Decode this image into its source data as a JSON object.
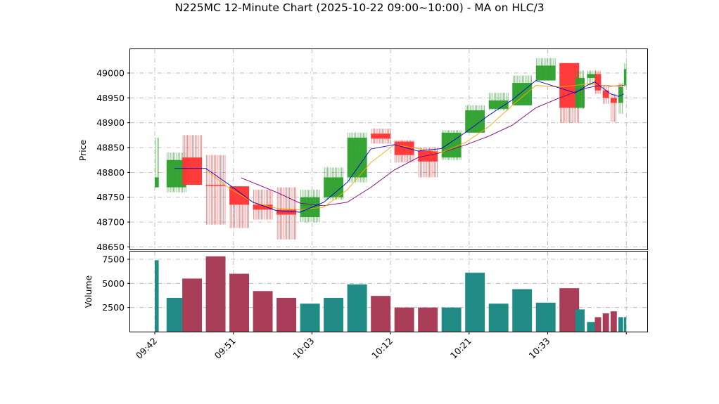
{
  "chart_data": {
    "type": "candlestick",
    "title": "N225MC 12-Minute Chart (2025-10-22 09:00~10:00) - MA on HLC/3",
    "price_panel": {
      "ylabel": "Price",
      "ylim": [
        48645,
        49048
      ],
      "yticks": [
        48650,
        48700,
        48750,
        48800,
        48850,
        48900,
        48950,
        49000
      ],
      "grid": true
    },
    "volume_panel": {
      "ylabel": "Volume",
      "ylim": [
        0,
        8300
      ],
      "yticks": [
        2500,
        5000,
        7500
      ],
      "grid": true
    },
    "x_tick_labels": [
      "09:42",
      "09:51",
      "10:03",
      "10:12",
      "10:21",
      "10:33"
    ],
    "colors": {
      "up": "#2ca02c",
      "down": "#ff3333",
      "volume_up": "#1f8f7a",
      "volume_down": "#a5405a",
      "ma_short": "#0000cc",
      "ma_mid": "#ffa500",
      "ma_long": "#800080"
    },
    "candles": [
      {
        "open": 48770,
        "high": 48870,
        "low": 48770,
        "close": 48790,
        "volume": 7400
      },
      {
        "open": 48770,
        "high": 48840,
        "low": 48760,
        "close": 48825,
        "volume": 3500
      },
      {
        "open": 48830,
        "high": 48875,
        "low": 48775,
        "close": 48775,
        "volume": 5500
      },
      {
        "open": 48775,
        "high": 48835,
        "low": 48695,
        "close": 48773,
        "volume": 7800
      },
      {
        "open": 48772,
        "high": 48772,
        "low": 48688,
        "close": 48735,
        "volume": 6000
      },
      {
        "open": 48735,
        "high": 48765,
        "low": 48705,
        "close": 48725,
        "volume": 4200
      },
      {
        "open": 48725,
        "high": 48770,
        "low": 48665,
        "close": 48715,
        "volume": 3500
      },
      {
        "open": 48710,
        "high": 48765,
        "low": 48700,
        "close": 48750,
        "volume": 2900
      },
      {
        "open": 48750,
        "high": 48810,
        "low": 48745,
        "close": 48790,
        "volume": 3500
      },
      {
        "open": 48790,
        "high": 48880,
        "low": 48780,
        "close": 48870,
        "volume": 4900
      },
      {
        "open": 48878,
        "high": 48888,
        "low": 48858,
        "close": 48868,
        "volume": 3700
      },
      {
        "open": 48862,
        "high": 48865,
        "low": 48820,
        "close": 48835,
        "volume": 2500
      },
      {
        "open": 48843,
        "high": 48850,
        "low": 48790,
        "close": 48822,
        "volume": 2500
      },
      {
        "open": 48830,
        "high": 48885,
        "low": 48825,
        "close": 48880,
        "volume": 2500
      },
      {
        "open": 48880,
        "high": 48935,
        "low": 48880,
        "close": 48925,
        "volume": 6100
      },
      {
        "open": 48928,
        "high": 48960,
        "low": 48925,
        "close": 48945,
        "volume": 2900
      },
      {
        "open": 48935,
        "high": 48995,
        "low": 48935,
        "close": 48980,
        "volume": 4400
      },
      {
        "open": 48985,
        "high": 49030,
        "low": 48985,
        "close": 49015,
        "volume": 3000
      },
      {
        "open": 49020,
        "high": 49020,
        "low": 48900,
        "close": 48930,
        "volume": 4500
      },
      {
        "open": 48930,
        "high": 49005,
        "low": 48928,
        "close": 48990,
        "volume": 2300
      },
      {
        "open": 48990,
        "high": 49005,
        "low": 48975,
        "close": 48998,
        "volume": 1000
      },
      {
        "open": 48998,
        "high": 49005,
        "low": 48958,
        "close": 48965,
        "volume": 1500
      },
      {
        "open": 48965,
        "high": 48975,
        "low": 48938,
        "close": 48950,
        "volume": 1900
      },
      {
        "open": 48950,
        "high": 48958,
        "low": 48902,
        "close": 48940,
        "volume": 2100
      },
      {
        "open": 48940,
        "high": 48980,
        "low": 48918,
        "close": 48972,
        "volume": 1500
      },
      {
        "open": 48975,
        "high": 49020,
        "low": 48972,
        "close": 49008,
        "volume": 1500
      }
    ],
    "candle_x_minutes": [
      0,
      1.5,
      3.5,
      6.5,
      9.5,
      12.5,
      15.5,
      18.5,
      21.5,
      24.5,
      27.5,
      30.5,
      33.5,
      36.5,
      39.5,
      42.5,
      45.5,
      48.5,
      51.5,
      53.5,
      55.0,
      56.0,
      57.0,
      58.0,
      59.0,
      59.7
    ],
    "candle_widths_minutes": [
      0.5,
      2.5,
      2.5,
      2.5,
      2.5,
      2.5,
      2.5,
      2.5,
      2.5,
      2.5,
      2.5,
      2.5,
      2.5,
      2.5,
      2.5,
      2.5,
      2.5,
      2.5,
      2.5,
      1.2,
      1.2,
      0.8,
      0.8,
      0.8,
      0.6,
      0.3
    ],
    "ma_short": [
      [
        2.5,
        48808
      ],
      [
        6.5,
        48808
      ],
      [
        9.5,
        48775
      ],
      [
        12.5,
        48740
      ],
      [
        15.5,
        48723
      ],
      [
        18.5,
        48720
      ],
      [
        21.5,
        48740
      ],
      [
        24.5,
        48780
      ],
      [
        27.5,
        48847
      ],
      [
        30.5,
        48856
      ],
      [
        33.5,
        48843
      ],
      [
        36.5,
        48848
      ],
      [
        39.5,
        48880
      ],
      [
        42.5,
        48915
      ],
      [
        45.5,
        48946
      ],
      [
        48.5,
        48985
      ],
      [
        51.5,
        48970
      ],
      [
        53.5,
        48960
      ],
      [
        55.0,
        48975
      ],
      [
        56.0,
        48982
      ],
      [
        57.0,
        48970
      ],
      [
        58.0,
        48958
      ],
      [
        59.0,
        48953
      ],
      [
        59.7,
        48958
      ]
    ],
    "ma_mid": [
      [
        6.5,
        48805
      ],
      [
        9.5,
        48768
      ],
      [
        12.5,
        48740
      ],
      [
        15.5,
        48728
      ],
      [
        18.5,
        48725
      ],
      [
        21.5,
        48730
      ],
      [
        24.5,
        48765
      ],
      [
        27.5,
        48820
      ],
      [
        30.5,
        48856
      ],
      [
        33.5,
        48848
      ],
      [
        36.5,
        48840
      ],
      [
        39.5,
        48860
      ],
      [
        42.5,
        48892
      ],
      [
        45.5,
        48935
      ],
      [
        48.5,
        48975
      ],
      [
        51.5,
        48972
      ],
      [
        53.5,
        48975
      ],
      [
        55.0,
        48978
      ],
      [
        56.0,
        48978
      ],
      [
        57.0,
        48975
      ],
      [
        58.0,
        48973
      ],
      [
        59.0,
        48975
      ],
      [
        59.7,
        48978
      ]
    ],
    "ma_long": [
      [
        11.0,
        48789
      ],
      [
        15.5,
        48760
      ],
      [
        18.5,
        48738
      ],
      [
        21.5,
        48733
      ],
      [
        24.5,
        48740
      ],
      [
        27.5,
        48770
      ],
      [
        30.5,
        48805
      ],
      [
        33.5,
        48830
      ],
      [
        36.5,
        48840
      ],
      [
        39.5,
        48855
      ],
      [
        42.5,
        48873
      ],
      [
        45.5,
        48895
      ],
      [
        48.5,
        48930
      ],
      [
        51.5,
        48950
      ],
      [
        53.5,
        48962
      ],
      [
        55.0,
        48970
      ],
      [
        56.0,
        48973
      ],
      [
        57.0,
        48975
      ],
      [
        58.0,
        48974
      ],
      [
        59.0,
        48974
      ],
      [
        59.7,
        48975
      ]
    ]
  }
}
